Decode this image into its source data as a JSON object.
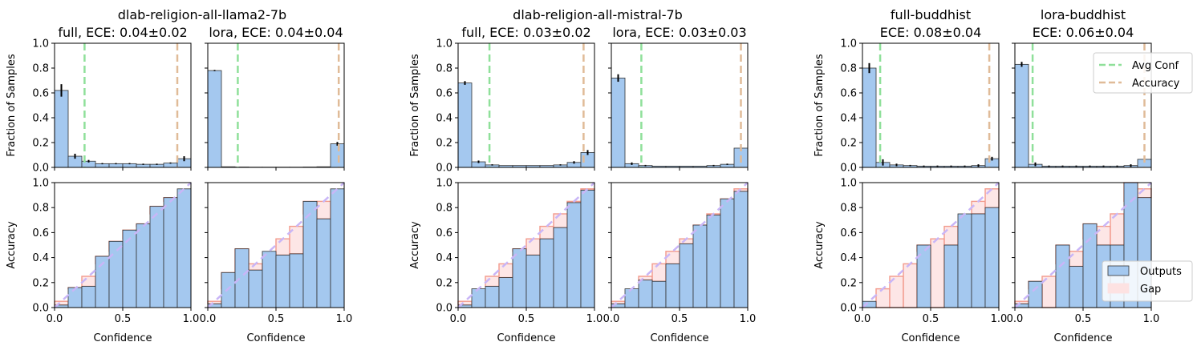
{
  "group_titles": [
    "dlab-religion-all-llama2-7b",
    "dlab-religion-all-mistral-7b"
  ],
  "colors": {
    "bar_fill": "#a4c8ef",
    "bar_edge": "#333333",
    "gap_fill": "#fde2e2",
    "gap_edge": "#f29a8c",
    "avg_conf_line": "#8fe09a",
    "accuracy_line": "#e0bb98",
    "diagonal": "#c9b6f7"
  },
  "legends": {
    "top": [
      {
        "label": "Avg Conf",
        "key": "avg_conf_line",
        "kind": "line"
      },
      {
        "label": "Accuracy",
        "key": "accuracy_line",
        "kind": "line"
      }
    ],
    "bottom": [
      {
        "label": "Outputs",
        "key": "bar_fill",
        "kind": "patch"
      },
      {
        "label": "Gap",
        "key": "gap_fill",
        "kind": "patch"
      }
    ]
  },
  "chart_data": [
    {
      "type": "bar",
      "title_lines": [
        "full, ECE: 0.04±0.02"
      ],
      "top": {
        "ylabel": "Fraction of Samples",
        "ylim": [
          0,
          1
        ],
        "yticks": [
          "0.0",
          "0.2",
          "0.4",
          "0.6",
          "0.8",
          "1.0"
        ],
        "values": [
          0.62,
          0.09,
          0.05,
          0.03,
          0.03,
          0.03,
          0.025,
          0.025,
          0.035,
          0.07
        ],
        "errors": [
          0.05,
          0.02,
          0.01,
          0.005,
          0.005,
          0.005,
          0.005,
          0.005,
          0.005,
          0.02
        ],
        "avg_conf": 0.22,
        "accuracy": 0.9
      },
      "bottom": {
        "ylabel": "Accuracy",
        "xlabel": "Confidence",
        "ylim": [
          0,
          1
        ],
        "xlim": [
          0,
          1
        ],
        "yticks": [
          "0.0",
          "0.2",
          "0.4",
          "0.6",
          "0.8",
          "1.0"
        ],
        "xticks": [
          "0.0",
          "0.5",
          "1.0"
        ],
        "values": [
          0.02,
          0.16,
          0.17,
          0.41,
          0.53,
          0.62,
          0.67,
          0.81,
          0.88,
          0.95
        ]
      }
    },
    {
      "type": "bar",
      "title_lines": [
        "lora, ECE: 0.04±0.04"
      ],
      "top": {
        "ylabel": "",
        "ylim": [
          0,
          1
        ],
        "yticks": [],
        "values": [
          0.78,
          0.005,
          0.003,
          0.002,
          0.002,
          0.002,
          0.002,
          0.003,
          0.005,
          0.19
        ],
        "errors": [
          0.005,
          0,
          0,
          0,
          0,
          0,
          0,
          0,
          0,
          0.015
        ],
        "avg_conf": 0.22,
        "accuracy": 0.96
      },
      "bottom": {
        "ylabel": "",
        "xlabel": "Confidence",
        "ylim": [
          0,
          1
        ],
        "xlim": [
          0,
          1
        ],
        "yticks": [],
        "xticks": [
          "0.0",
          "0.5",
          "1.0"
        ],
        "values": [
          0.03,
          0.28,
          0.47,
          0.3,
          0.45,
          0.42,
          0.43,
          0.85,
          0.71,
          0.95
        ]
      }
    },
    {
      "type": "bar",
      "title_lines": [
        "full, ECE: 0.03±0.02"
      ],
      "top": {
        "ylabel": "Fraction of Samples",
        "ylim": [
          0,
          1
        ],
        "yticks": [
          "0.0",
          "0.2",
          "0.4",
          "0.6",
          "0.8",
          "1.0"
        ],
        "values": [
          0.68,
          0.045,
          0.02,
          0.015,
          0.015,
          0.015,
          0.015,
          0.02,
          0.04,
          0.12
        ],
        "errors": [
          0.015,
          0.01,
          0.005,
          0,
          0,
          0,
          0,
          0.005,
          0.01,
          0.02
        ],
        "avg_conf": 0.23,
        "accuracy": 0.92
      },
      "bottom": {
        "ylabel": "Accuracy",
        "xlabel": "Confidence",
        "ylim": [
          0,
          1
        ],
        "xlim": [
          0,
          1
        ],
        "yticks": [
          "0.0",
          "0.2",
          "0.4",
          "0.6",
          "0.8",
          "1.0"
        ],
        "xticks": [
          "0.0",
          "0.5",
          "1.0"
        ],
        "values": [
          0.02,
          0.15,
          0.17,
          0.24,
          0.47,
          0.42,
          0.55,
          0.64,
          0.84,
          0.94
        ]
      }
    },
    {
      "type": "bar",
      "title_lines": [
        "lora, ECE: 0.03±0.03"
      ],
      "top": {
        "ylabel": "",
        "ylim": [
          0,
          1
        ],
        "yticks": [],
        "values": [
          0.72,
          0.03,
          0.015,
          0.01,
          0.01,
          0.01,
          0.01,
          0.015,
          0.025,
          0.155
        ],
        "errors": [
          0.03,
          0.01,
          0.005,
          0,
          0,
          0,
          0,
          0.005,
          0.005,
          0.025
        ],
        "avg_conf": 0.22,
        "accuracy": 0.95
      },
      "bottom": {
        "ylabel": "",
        "xlabel": "Confidence",
        "ylim": [
          0,
          1
        ],
        "xlim": [
          0,
          1
        ],
        "yticks": [],
        "xticks": [
          "0.0",
          "0.5",
          "1.0"
        ],
        "values": [
          0.03,
          0.15,
          0.22,
          0.21,
          0.35,
          0.51,
          0.66,
          0.74,
          0.87,
          0.93
        ]
      }
    },
    {
      "type": "bar",
      "title_lines": [
        "full-buddhist",
        "ECE: 0.08±0.04"
      ],
      "top": {
        "ylabel": "Fraction of Samples",
        "ylim": [
          0,
          1
        ],
        "yticks": [
          "0.0",
          "0.2",
          "0.4",
          "0.6",
          "0.8",
          "1.0"
        ],
        "values": [
          0.8,
          0.04,
          0.02,
          0.015,
          0.01,
          0.01,
          0.01,
          0.01,
          0.015,
          0.07
        ],
        "errors": [
          0.04,
          0.025,
          0.01,
          0.005,
          0.005,
          0.005,
          0.005,
          0.005,
          0.01,
          0.015
        ],
        "avg_conf": 0.13,
        "accuracy": 0.93
      },
      "bottom": {
        "ylabel": "Accuracy",
        "xlabel": "Confidence",
        "ylim": [
          0,
          1
        ],
        "xlim": [
          0,
          1
        ],
        "yticks": [
          "0.0",
          "0.2",
          "0.4",
          "0.6",
          "0.8",
          "1.0"
        ],
        "xticks": [
          "0.0",
          "0.5",
          "1.0"
        ],
        "values": [
          0.05,
          0,
          0,
          0,
          0.5,
          0,
          0.5,
          0.75,
          0.75,
          0.8
        ]
      }
    },
    {
      "type": "bar",
      "title_lines": [
        "lora-buddhist",
        "ECE: 0.06±0.04"
      ],
      "top": {
        "ylabel": "",
        "ylim": [
          0,
          1
        ],
        "yticks": [],
        "values": [
          0.83,
          0.025,
          0.01,
          0.01,
          0.01,
          0.01,
          0.01,
          0.01,
          0.015,
          0.065
        ],
        "errors": [
          0.02,
          0.015,
          0.005,
          0.005,
          0.005,
          0.005,
          0.005,
          0.005,
          0.01,
          0.02
        ],
        "avg_conf": 0.13,
        "accuracy": 0.95
      },
      "bottom": {
        "ylabel": "",
        "xlabel": "Confidence",
        "ylim": [
          0,
          1
        ],
        "xlim": [
          0,
          1
        ],
        "yticks": [],
        "xticks": [
          "0.0",
          "0.5",
          "1.0"
        ],
        "values": [
          0.03,
          0.21,
          0,
          0.5,
          0.33,
          0.67,
          0.5,
          0.5,
          1.0,
          0.88
        ]
      }
    }
  ]
}
